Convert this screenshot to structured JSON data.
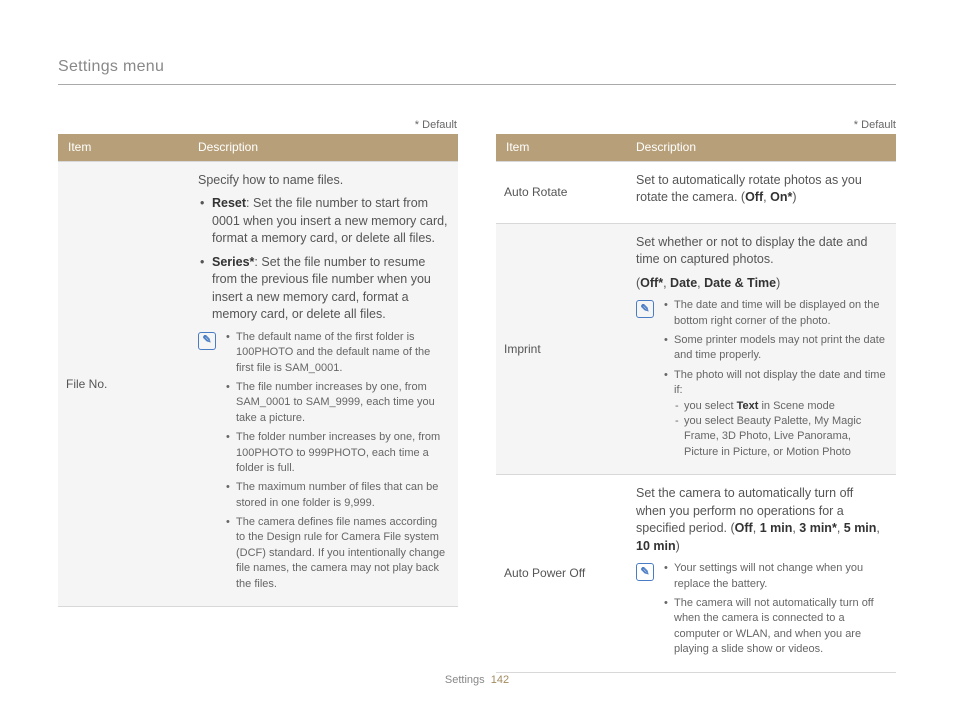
{
  "page": {
    "title": "Settings menu",
    "default_label": "* Default",
    "footer_section": "Settings",
    "footer_page": "142"
  },
  "colors": {
    "header_bg": "#b7a079",
    "header_text": "#ffffff",
    "shade_bg": "#f5f5f5",
    "border": "#d8d8d8",
    "note_icon": "#4a7cc4",
    "text": "#555555"
  },
  "left_table": {
    "headers": {
      "item": "Item",
      "description": "Description"
    },
    "rows": [
      {
        "shade": true,
        "item": "File No.",
        "desc_top": "Specify how to name files.",
        "main_bullets": [
          {
            "bold": "Reset",
            "text": ": Set the file number to start from 0001 when you insert a new memory card, format a memory card, or delete all files."
          },
          {
            "bold": "Series",
            "star": true,
            "text": ": Set the file number to resume from the previous file number when you insert a new memory card, format a memory card, or delete all files."
          }
        ],
        "note_bullets": [
          "The default name of the first folder is 100PHOTO and the default name of the first file is SAM_0001.",
          "The file number increases by one, from SAM_0001 to SAM_9999, each time you take a picture.",
          "The folder number increases by one, from 100PHOTO to 999PHOTO, each time a folder is full.",
          "The maximum number of files that can be stored in one folder is 9,999.",
          "The camera defines file names according to the Design rule for Camera File system (DCF) standard. If you intentionally change file names, the camera may not play back the files."
        ]
      }
    ]
  },
  "right_table": {
    "headers": {
      "item": "Item",
      "description": "Description"
    },
    "rows": [
      {
        "shade": false,
        "item": "Auto Rotate",
        "desc_pre": "Set to automatically rotate photos as you rotate the camera. (",
        "opts": [
          {
            "t": "Off",
            "bold": true
          },
          {
            "t": ", "
          },
          {
            "t": "On",
            "bold": true,
            "star": true
          }
        ],
        "desc_post": ")"
      },
      {
        "shade": true,
        "item": "Imprint",
        "desc_top": "Set whether or not to display the date and time on captured photos.",
        "opts_line_pre": "(",
        "opts": [
          {
            "t": "Off",
            "bold": true,
            "star": true
          },
          {
            "t": ", "
          },
          {
            "t": "Date",
            "bold": true
          },
          {
            "t": ", "
          },
          {
            "t": "Date & Time",
            "bold": true
          }
        ],
        "opts_line_post": ")",
        "note_bullets": [
          "The date and time will be displayed on the bottom right corner of the photo.",
          "Some printer models may not print the date and time properly.",
          {
            "text": "The photo will not display the date and time if:",
            "sub": [
              {
                "pre": "you select ",
                "bold": "Text",
                "post": " in Scene mode"
              },
              {
                "pre": "you select Beauty Palette, My Magic Frame, 3D Photo, Live Panorama, Picture in Picture, or Motion Photo"
              }
            ]
          }
        ]
      },
      {
        "shade": false,
        "item": "Auto Power Off",
        "desc_pre": "Set the camera to automatically turn off when you perform no operations for a specified period. (",
        "opts": [
          {
            "t": "Off",
            "bold": true
          },
          {
            "t": ", "
          },
          {
            "t": "1 min",
            "bold": true
          },
          {
            "t": ", "
          },
          {
            "t": "3 min",
            "bold": true,
            "star": true
          },
          {
            "t": ", "
          },
          {
            "t": "5 min",
            "bold": true
          },
          {
            "t": ", "
          },
          {
            "t": "10 min",
            "bold": true
          }
        ],
        "desc_post": ")",
        "note_bullets": [
          "Your settings will not change when you replace the battery.",
          "The camera will not automatically turn off when the camera is connected to a computer or WLAN, and when you are playing a slide show or videos."
        ]
      }
    ]
  }
}
